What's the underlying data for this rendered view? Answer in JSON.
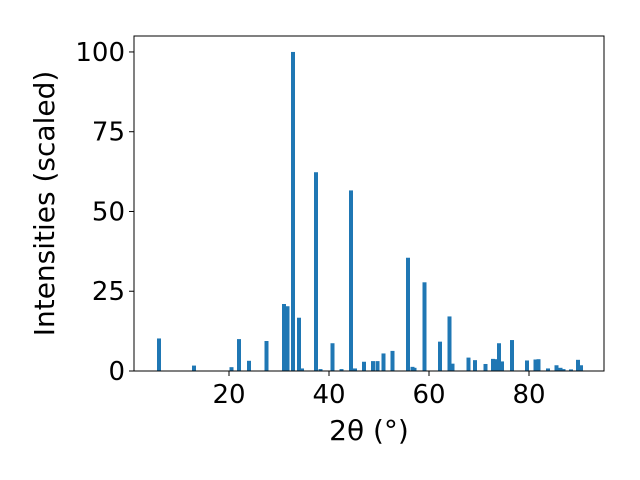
{
  "chart_data": {
    "type": "bar",
    "xlabel": "2θ (°)",
    "ylabel": "Intensities (scaled)",
    "xlim": [
      1.0,
      95.0
    ],
    "ylim": [
      0,
      105
    ],
    "xticks": [
      20,
      40,
      60,
      80
    ],
    "yticks": [
      0,
      25,
      50,
      75,
      100
    ],
    "bar_width": 0.8,
    "color": "#1f77b4",
    "grid": false,
    "legend": null,
    "x": [
      6.0,
      13.0,
      20.5,
      22.0,
      24.0,
      27.5,
      31.0,
      31.7,
      32.8,
      34.0,
      34.6,
      37.4,
      38.3,
      40.7,
      42.5,
      44.4,
      45.2,
      47.0,
      48.8,
      49.7,
      50.9,
      52.7,
      55.8,
      56.7,
      57.1,
      59.1,
      62.2,
      64.1,
      64.7,
      67.9,
      69.2,
      71.3,
      72.8,
      73.4,
      74.0,
      74.6,
      76.6,
      79.6,
      81.3,
      81.9,
      83.8,
      85.5,
      86.3,
      86.9,
      88.4,
      89.8,
      90.4
    ],
    "values": [
      10.2,
      1.7,
      1.2,
      10.0,
      3.2,
      9.4,
      21.0,
      20.3,
      100.0,
      16.7,
      0.8,
      62.3,
      0.6,
      8.7,
      0.6,
      56.6,
      0.8,
      2.9,
      3.1,
      3.1,
      5.5,
      6.3,
      35.5,
      1.3,
      1.0,
      27.8,
      9.2,
      17.1,
      2.3,
      4.2,
      3.4,
      2.2,
      3.8,
      3.7,
      8.7,
      3.0,
      9.7,
      3.3,
      3.6,
      3.7,
      0.8,
      1.8,
      1.0,
      0.6,
      0.5,
      3.5,
      1.8
    ]
  }
}
